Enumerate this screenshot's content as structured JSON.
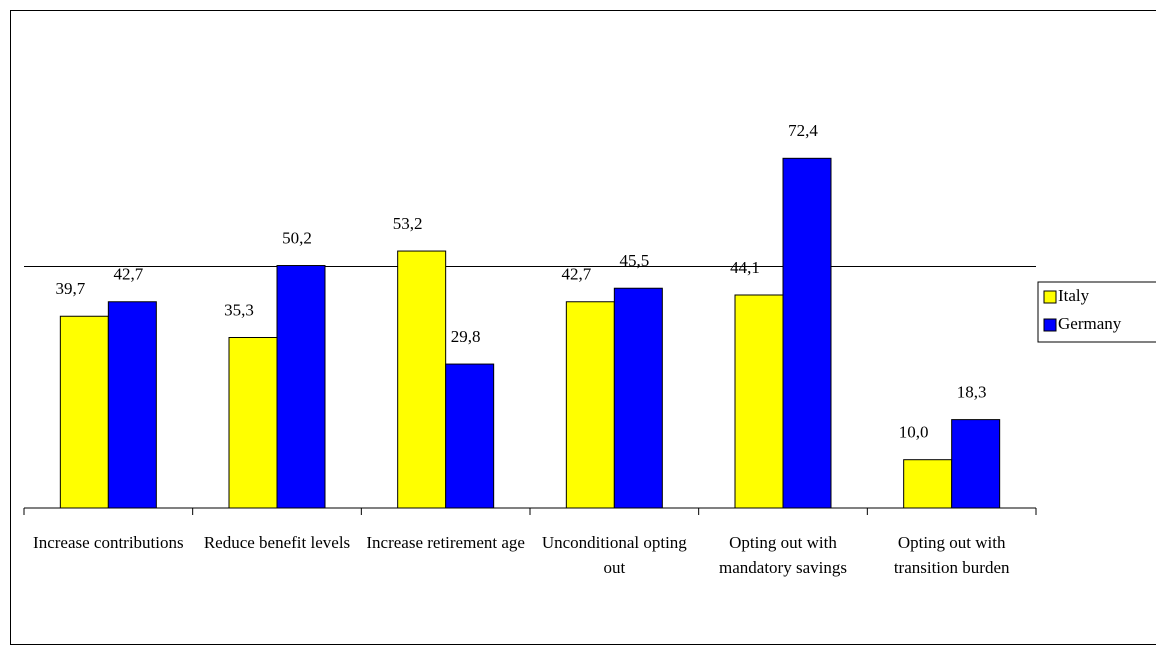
{
  "chart_data": {
    "type": "bar",
    "categories": [
      "Increase contributions",
      "Reduce benefit levels",
      "Increase retirement age",
      "Unconditional opting out",
      "Opting out with mandatory savings",
      "Opting out with transition burden"
    ],
    "series": [
      {
        "name": "Italy",
        "color": "#ffff00",
        "values": [
          39.7,
          35.3,
          53.2,
          42.7,
          44.1,
          10.0
        ],
        "value_labels": [
          "39,7",
          "35,3",
          "53,2",
          "42,7",
          "44,1",
          "10,0"
        ]
      },
      {
        "name": "Germany",
        "color": "#0000ff",
        "values": [
          42.7,
          50.2,
          29.8,
          45.5,
          72.4,
          18.3
        ],
        "value_labels": [
          "42,7",
          "50,2",
          "29,8",
          "45,5",
          "72,4",
          "18,3"
        ]
      }
    ],
    "ylim": [
      0,
      100
    ],
    "yticks": [
      50
    ],
    "grid": true,
    "legend": "right"
  }
}
